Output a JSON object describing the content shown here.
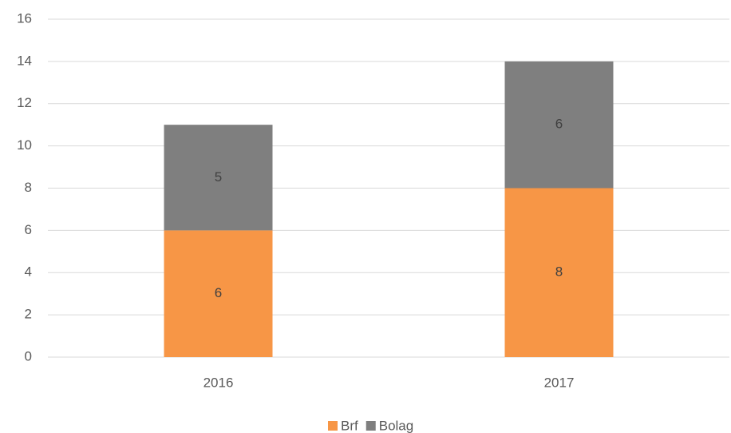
{
  "chart_data": {
    "type": "stacked_bar",
    "categories": [
      "2016",
      "2017"
    ],
    "series": [
      {
        "name": "Brf",
        "color": "#f79646",
        "values": [
          6,
          8
        ]
      },
      {
        "name": "Bolag",
        "color": "#7f7f7f",
        "values": [
          5,
          6
        ]
      }
    ],
    "ylim": [
      0,
      16
    ],
    "yticks": [
      0,
      2,
      4,
      6,
      8,
      10,
      12,
      14,
      16
    ],
    "grid": true,
    "legend": "bottom",
    "data_labels": true
  }
}
